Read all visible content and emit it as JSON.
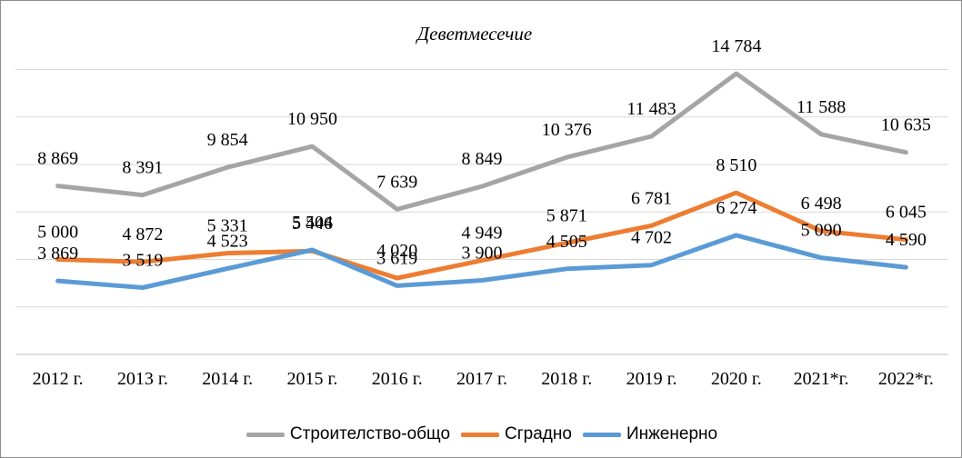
{
  "chart_data": {
    "type": "line",
    "title": "Деветмесечие",
    "xlabel": "",
    "ylabel": "",
    "categories": [
      "2012 г.",
      "2013 г.",
      "2014 г.",
      "2015 г.",
      "2016 г.",
      "2017 г.",
      "2018 г.",
      "2019 г.",
      "2020 г.",
      "2021*г.",
      "2022*г."
    ],
    "ylim": [
      0,
      16000
    ],
    "grid": true,
    "legend": "bottom",
    "series": [
      {
        "name": "Строителство-общо",
        "color": "#a5a5a5",
        "values": [
          8869,
          8391,
          9854,
          10950,
          7639,
          8849,
          10376,
          11483,
          14784,
          11588,
          10635
        ],
        "labels": [
          "8 869",
          "8 391",
          "9 854",
          "10 950",
          "7 639",
          "8 849",
          "10 376",
          "11 483",
          "14 784",
          "11 588",
          "10 635"
        ]
      },
      {
        "name": "Сградно",
        "color": "#ed7d31",
        "values": [
          5000,
          4872,
          5331,
          5446,
          4020,
          4949,
          5871,
          6781,
          8510,
          6498,
          6045
        ],
        "labels": [
          "5 000",
          "4 872",
          "5 331",
          "5 446",
          "4 020",
          "4 949",
          "5 871",
          "6 781",
          "8 510",
          "6 498",
          "6 045"
        ]
      },
      {
        "name": "Инженерно",
        "color": "#5b9bd5",
        "values": [
          3869,
          3519,
          4523,
          5504,
          3619,
          3900,
          4505,
          4702,
          6274,
          5090,
          4590
        ],
        "labels": [
          "3 869",
          "3 519",
          "4 523",
          "5 504",
          "3 619",
          "3 900",
          "4 505",
          "4 702",
          "6 274",
          "5 090",
          "4 590"
        ]
      }
    ]
  }
}
